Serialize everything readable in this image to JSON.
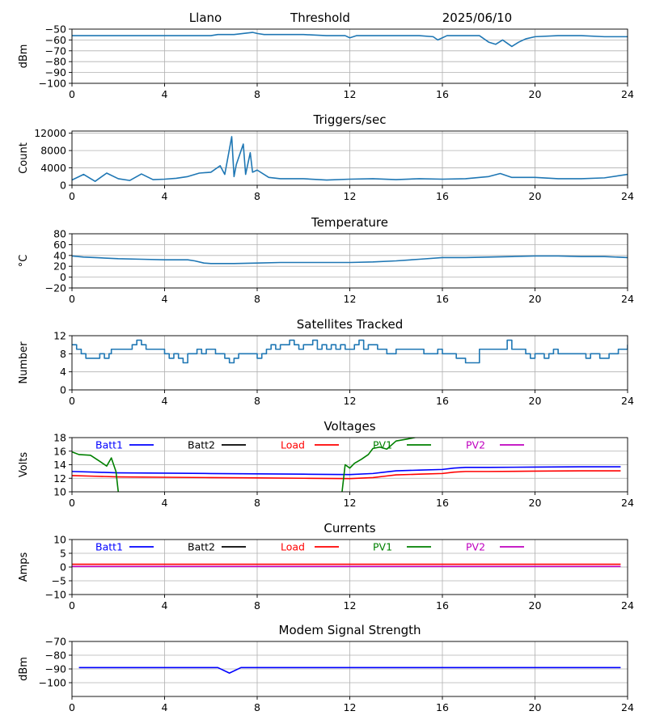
{
  "header": {
    "station": "Llano",
    "mode": "Threshold",
    "date": "2025/06/10"
  },
  "chart_data": [
    {
      "id": "signal",
      "type": "line",
      "title": "",
      "ylabel": "dBm",
      "xlim": [
        0,
        24
      ],
      "ylim": [
        -100,
        -50
      ],
      "xticks": [
        0,
        4,
        8,
        12,
        16,
        20,
        24
      ],
      "yticks": [
        -100,
        -90,
        -80,
        -70,
        -60,
        -50
      ],
      "grid": true,
      "series": [
        {
          "color": "#1f77b4",
          "x": [
            0,
            1,
            2,
            3,
            4,
            5,
            6,
            6.3,
            7,
            7.8,
            8,
            8.3,
            9,
            10,
            11,
            11.8,
            12,
            12.3,
            13,
            14,
            15,
            15.6,
            15.8,
            16.2,
            17,
            17.6,
            18,
            18.3,
            18.6,
            18.8,
            19,
            19.3,
            19.6,
            20,
            21,
            22,
            23,
            24
          ],
          "y": [
            -56,
            -56,
            -56,
            -56,
            -56,
            -56,
            -56,
            -55,
            -55,
            -53,
            -54,
            -55,
            -55,
            -55,
            -56,
            -56,
            -58,
            -56,
            -56,
            -56,
            -56,
            -57,
            -60,
            -56,
            -56,
            -56,
            -62,
            -64,
            -60,
            -63,
            -66,
            -62,
            -59,
            -57,
            -56,
            -56,
            -57,
            -57
          ]
        }
      ]
    },
    {
      "id": "triggers",
      "type": "line",
      "title": "Triggers/sec",
      "ylabel": "Count",
      "xlim": [
        0,
        24
      ],
      "ylim": [
        0,
        12500
      ],
      "xticks": [
        0,
        4,
        8,
        12,
        16,
        20,
        24
      ],
      "yticks": [
        0,
        4000,
        8000,
        12000
      ],
      "grid": true,
      "series": [
        {
          "color": "#1f77b4",
          "x": [
            0,
            0.5,
            1,
            1.5,
            2,
            2.5,
            3,
            3.5,
            4,
            4.5,
            5,
            5.5,
            6,
            6.4,
            6.6,
            6.9,
            7.0,
            7.1,
            7.4,
            7.5,
            7.7,
            7.8,
            8,
            8.5,
            9,
            10,
            11,
            12,
            13,
            14,
            15,
            16,
            17,
            18,
            18.5,
            19,
            20,
            21,
            22,
            23,
            24
          ],
          "y": [
            1200,
            2500,
            900,
            2800,
            1500,
            1100,
            2600,
            1300,
            1400,
            1600,
            2000,
            2800,
            3000,
            4500,
            2500,
            11200,
            2000,
            4800,
            9500,
            2500,
            7500,
            3000,
            3500,
            1800,
            1500,
            1500,
            1200,
            1400,
            1500,
            1300,
            1500,
            1400,
            1500,
            2000,
            2700,
            1800,
            1800,
            1500,
            1500,
            1700,
            2500
          ]
        }
      ]
    },
    {
      "id": "temperature",
      "type": "line",
      "title": "Temperature",
      "ylabel": "°C",
      "xlim": [
        0,
        24
      ],
      "ylim": [
        -20,
        80
      ],
      "xticks": [
        0,
        4,
        8,
        12,
        16,
        20,
        24
      ],
      "yticks": [
        -20,
        0,
        20,
        40,
        60,
        80
      ],
      "grid": true,
      "series": [
        {
          "color": "#1f77b4",
          "x": [
            0,
            0.5,
            1,
            2,
            3,
            4,
            5,
            5.3,
            5.7,
            6,
            7,
            8,
            9,
            10,
            11,
            12,
            13,
            14,
            15,
            16,
            17,
            18,
            19,
            20,
            21,
            22,
            23,
            24
          ],
          "y": [
            39,
            37,
            36,
            34,
            33,
            32,
            32,
            30,
            26,
            25,
            25,
            26,
            27,
            27,
            27,
            27,
            28,
            30,
            33,
            36,
            36,
            37,
            38,
            39,
            39,
            38,
            38,
            36
          ]
        }
      ]
    },
    {
      "id": "satellites",
      "type": "line",
      "step": true,
      "title": "Satellites Tracked",
      "ylabel": "Number",
      "xlim": [
        0,
        24
      ],
      "ylim": [
        0,
        12
      ],
      "xticks": [
        0,
        4,
        8,
        12,
        16,
        20,
        24
      ],
      "yticks": [
        0,
        4,
        8,
        12
      ],
      "grid": true,
      "series": [
        {
          "color": "#1f77b4",
          "x": [
            0,
            0.2,
            0.4,
            0.6,
            1.2,
            1.4,
            1.6,
            1.7,
            2.6,
            2.8,
            3.0,
            3.2,
            4.0,
            4.2,
            4.4,
            4.6,
            4.8,
            5.0,
            5.4,
            5.6,
            5.8,
            6.2,
            6.6,
            6.8,
            7.0,
            7.2,
            8.0,
            8.2,
            8.4,
            8.6,
            8.8,
            9.0,
            9.4,
            9.6,
            9.8,
            10.0,
            10.4,
            10.6,
            10.8,
            11.0,
            11.2,
            11.4,
            11.6,
            11.8,
            12.2,
            12.4,
            12.6,
            12.8,
            13.2,
            13.6,
            14.0,
            15.0,
            15.2,
            15.8,
            16.0,
            16.6,
            16.8,
            17.0,
            17.6,
            17.8,
            18.8,
            19.0,
            19.4,
            19.6,
            19.8,
            20.0,
            20.4,
            20.6,
            20.8,
            21.0,
            21.4,
            21.8,
            22.2,
            22.4,
            22.6,
            22.8,
            23.2,
            23.6,
            24.0
          ],
          "y": [
            10,
            9,
            8,
            7,
            8,
            7,
            8,
            9,
            10,
            11,
            10,
            9,
            8,
            7,
            8,
            7,
            6,
            8,
            9,
            8,
            9,
            8,
            7,
            6,
            7,
            8,
            7,
            8,
            9,
            10,
            9,
            10,
            11,
            10,
            9,
            10,
            11,
            9,
            10,
            9,
            10,
            9,
            10,
            9,
            10,
            11,
            9,
            10,
            9,
            8,
            9,
            9,
            8,
            9,
            8,
            7,
            7,
            6,
            9,
            9,
            11,
            9,
            9,
            8,
            7,
            8,
            7,
            8,
            9,
            8,
            8,
            8,
            7,
            8,
            8,
            7,
            8,
            9,
            10
          ]
        }
      ]
    },
    {
      "id": "voltages",
      "type": "line",
      "title": "Voltages",
      "ylabel": "Volts",
      "xlim": [
        0,
        24
      ],
      "ylim": [
        10,
        18
      ],
      "xticks": [
        0,
        4,
        8,
        12,
        16,
        20,
        24
      ],
      "yticks": [
        10,
        12,
        14,
        16,
        18
      ],
      "grid": true,
      "legend": [
        {
          "name": "Batt1",
          "color": "#0000ff"
        },
        {
          "name": "Batt2",
          "color": "#000000"
        },
        {
          "name": "Load",
          "color": "#ff0000"
        },
        {
          "name": "PV1",
          "color": "#008000"
        },
        {
          "name": "PV2",
          "color": "#bf00bf"
        }
      ],
      "series": [
        {
          "name": "Batt1",
          "color": "#0000ff",
          "x": [
            0,
            1,
            2,
            4,
            6,
            8,
            10,
            12,
            13,
            13.5,
            14,
            15,
            16,
            16.5,
            17,
            18,
            20,
            22,
            23.7
          ],
          "y": [
            13.0,
            12.9,
            12.8,
            12.75,
            12.7,
            12.65,
            12.6,
            12.55,
            12.7,
            12.9,
            13.1,
            13.2,
            13.3,
            13.5,
            13.6,
            13.6,
            13.65,
            13.7,
            13.7
          ]
        },
        {
          "name": "Load",
          "color": "#ff0000",
          "x": [
            0,
            1,
            2,
            4,
            6,
            8,
            10,
            12,
            13,
            13.5,
            14,
            15,
            16,
            16.5,
            17,
            18,
            20,
            22,
            23.7
          ],
          "y": [
            12.4,
            12.3,
            12.2,
            12.15,
            12.1,
            12.05,
            12.0,
            11.95,
            12.1,
            12.3,
            12.5,
            12.6,
            12.7,
            12.9,
            13.0,
            13.0,
            13.05,
            13.1,
            13.1
          ]
        },
        {
          "name": "PV1",
          "color": "#008000",
          "x": [
            0,
            0.3,
            0.8,
            1.2,
            1.5,
            1.7,
            1.9,
            2.0,
            2.2
          ],
          "y": [
            15.9,
            15.5,
            15.4,
            14.5,
            13.8,
            15.0,
            13.0,
            10.0,
            8.0
          ]
        },
        {
          "name": "PV1",
          "color": "#008000",
          "x": [
            11.6,
            11.8,
            12.0,
            12.2,
            12.5,
            12.8,
            13.0,
            13.3,
            13.6,
            14.0,
            14.5,
            14.8,
            15.2
          ],
          "y": [
            8.0,
            14.0,
            13.5,
            14.2,
            14.8,
            15.5,
            16.4,
            16.6,
            16.3,
            17.5,
            17.8,
            18.0,
            18.5
          ]
        }
      ]
    },
    {
      "id": "currents",
      "type": "line",
      "title": "Currents",
      "ylabel": "Amps",
      "xlim": [
        0,
        24
      ],
      "ylim": [
        -10,
        10
      ],
      "xticks": [
        0,
        4,
        8,
        12,
        16,
        20,
        24
      ],
      "yticks": [
        -10,
        -5,
        0,
        5,
        10
      ],
      "grid": true,
      "legend": [
        {
          "name": "Batt1",
          "color": "#0000ff"
        },
        {
          "name": "Batt2",
          "color": "#000000"
        },
        {
          "name": "Load",
          "color": "#ff0000"
        },
        {
          "name": "PV1",
          "color": "#008000"
        },
        {
          "name": "PV2",
          "color": "#bf00bf"
        }
      ],
      "series": [
        {
          "name": "Load",
          "color": "#ff0000",
          "x": [
            0,
            4,
            8,
            12,
            16,
            20,
            23.7
          ],
          "y": [
            1.0,
            1.0,
            1.0,
            1.0,
            1.0,
            1.0,
            1.0
          ]
        },
        {
          "name": "PV2",
          "color": "#bf00bf",
          "x": [
            0,
            4,
            8,
            12,
            16,
            20,
            23.7
          ],
          "y": [
            0.2,
            0.2,
            0.2,
            0.2,
            0.2,
            0.2,
            0.2
          ]
        }
      ]
    },
    {
      "id": "modem",
      "type": "line",
      "title": "Modem Signal Strength",
      "ylabel": "dBm",
      "xlim": [
        0,
        24
      ],
      "ylim": [
        -110,
        -70
      ],
      "xticks": [
        0,
        4,
        8,
        12,
        16,
        20,
        24
      ],
      "yticks": [
        -100,
        -90,
        -80,
        -70
      ],
      "grid": true,
      "series": [
        {
          "color": "#0000ff",
          "x": [
            0.3,
            6.3,
            6.8,
            7.3,
            23.7
          ],
          "y": [
            -89,
            -89,
            -93,
            -89,
            -89
          ]
        }
      ]
    }
  ]
}
